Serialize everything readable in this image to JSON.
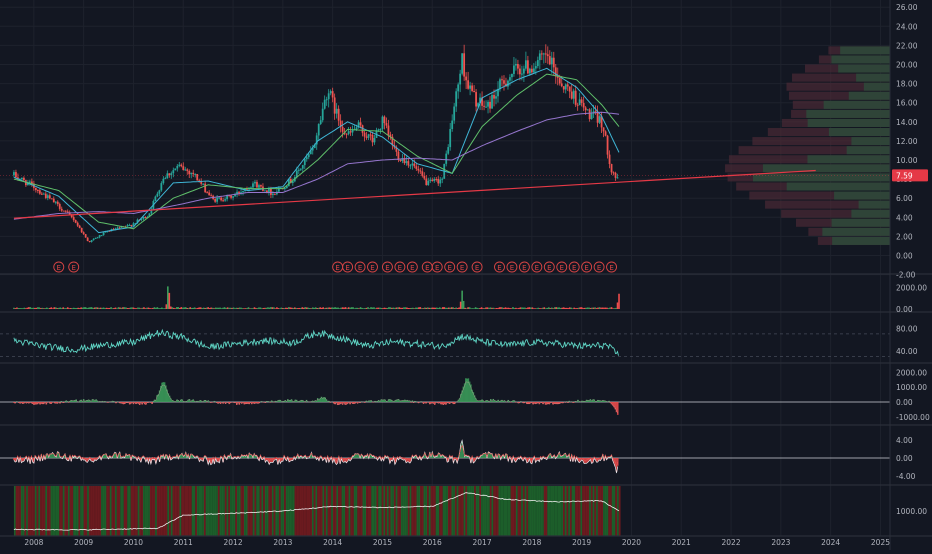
{
  "colors": {
    "background": "#131722",
    "grid": "#1e222d",
    "separator": "#2a2e39",
    "axis_text": "#b2b5be",
    "up": "#26a69a",
    "down": "#ef5350",
    "up_volume": "#3c9d5a",
    "down_volume": "#ef4c4c",
    "ma_fast": "#3fb6d6",
    "ma_mid": "#5fbf6a",
    "ma_slow": "#9575cd",
    "trendline": "#e53946",
    "price_label_bg": "#e53946",
    "earnings_marker": "#d84545",
    "rsi_line": "#5fd4c4",
    "heat_green": "#1c5e2a",
    "heat_red": "#6b1a1f"
  },
  "chart_data": [
    {
      "type": "candlestick",
      "panel": "price",
      "title": "",
      "xlabel": "",
      "ylabel": "",
      "y_axis_ticks": [
        "26.00",
        "24.00",
        "22.00",
        "20.00",
        "18.00",
        "16.00",
        "14.00",
        "12.00",
        "10.00",
        "8.00",
        "6.00",
        "4.00",
        "2.00",
        "0.00",
        "-2.00"
      ],
      "ylim": [
        -2,
        26
      ],
      "last_price_label": "7.59",
      "close_series": {
        "x": [
          2007.6,
          2008.0,
          2008.4,
          2008.8,
          2009.1,
          2009.5,
          2009.9,
          2010.3,
          2010.6,
          2010.9,
          2011.2,
          2011.6,
          2012.0,
          2012.4,
          2012.8,
          2013.2,
          2013.6,
          2013.9,
          2014.1,
          2014.3,
          2014.5,
          2014.8,
          2015.0,
          2015.3,
          2015.6,
          2015.9,
          2016.2,
          2016.6,
          2016.7,
          2016.9,
          2017.1,
          2017.4,
          2017.7,
          2018.0,
          2018.3,
          2018.6,
          2018.8,
          2019.1,
          2019.4,
          2019.6,
          2019.75
        ],
        "y": [
          8.4,
          7.2,
          5.6,
          3.8,
          1.4,
          2.6,
          3.1,
          4.2,
          8.2,
          9.3,
          8.6,
          5.8,
          6.2,
          7.6,
          6.5,
          8.0,
          11.0,
          17.5,
          14.5,
          12.5,
          13.5,
          12.0,
          14.0,
          10.5,
          9.5,
          7.5,
          8.0,
          20.5,
          18.0,
          16.0,
          15.5,
          18.0,
          19.5,
          19.8,
          20.8,
          18.0,
          17.0,
          15.0,
          14.0,
          9.0,
          7.59
        ]
      },
      "moving_averages": [
        {
          "x": [
            2007.6,
            2008.5,
            2009.3,
            2010.0,
            2010.8,
            2011.5,
            2012.3,
            2013.0,
            2013.7,
            2014.3,
            2015.0,
            2015.7,
            2016.4,
            2017.0,
            2017.7,
            2018.3,
            2018.9,
            2019.4,
            2019.75
          ],
          "y": [
            8.2,
            6.2,
            2.4,
            3.0,
            7.6,
            7.8,
            6.8,
            7.2,
            12.0,
            14.0,
            12.4,
            9.6,
            8.6,
            16.5,
            18.4,
            19.6,
            17.6,
            14.6,
            10.8
          ]
        },
        {
          "x": [
            2007.6,
            2008.5,
            2009.3,
            2010.0,
            2010.8,
            2011.5,
            2012.3,
            2013.0,
            2013.7,
            2014.3,
            2015.0,
            2015.7,
            2016.4,
            2017.0,
            2017.7,
            2018.3,
            2018.9,
            2019.4,
            2019.75
          ],
          "y": [
            8.0,
            6.8,
            3.5,
            2.8,
            6.0,
            7.4,
            7.0,
            7.0,
            10.0,
            13.2,
            13.0,
            10.4,
            8.6,
            13.5,
            16.8,
            19.0,
            18.4,
            15.8,
            13.5
          ]
        },
        {
          "x": [
            2007.6,
            2008.5,
            2009.3,
            2010.0,
            2010.8,
            2011.5,
            2012.3,
            2013.0,
            2013.7,
            2014.3,
            2015.0,
            2015.7,
            2016.4,
            2017.0,
            2017.7,
            2018.3,
            2018.9,
            2019.4,
            2019.75
          ],
          "y": [
            3.8,
            4.4,
            4.6,
            4.4,
            5.2,
            6.0,
            6.6,
            6.6,
            8.0,
            9.6,
            10.0,
            10.2,
            10.0,
            11.5,
            13.0,
            14.2,
            14.8,
            15.0,
            14.8
          ]
        }
      ],
      "trendline": {
        "x": [
          2007.6,
          2023.7
        ],
        "y": [
          3.9,
          8.9
        ]
      },
      "earnings_markers": {
        "label": "E",
        "x": [
          2008.5,
          2008.8,
          2014.1,
          2014.3,
          2014.55,
          2014.8,
          2015.1,
          2015.35,
          2015.6,
          2015.9,
          2016.1,
          2016.35,
          2016.6,
          2016.9,
          2017.35,
          2017.6,
          2017.85,
          2018.1,
          2018.35,
          2018.6,
          2018.85,
          2019.1,
          2019.35,
          2019.6
        ]
      },
      "volume_profile_note": ""
    },
    {
      "type": "bar",
      "panel": "volume",
      "y_axis_ticks": [
        "2000.00",
        "0.00"
      ],
      "ylim": [
        0,
        3000
      ],
      "x": [
        2010.7,
        2016.6,
        2019.75
      ],
      "values": [
        2200,
        1600,
        1300
      ]
    },
    {
      "type": "line",
      "panel": "rsi",
      "y_axis_ticks": [
        "80.00",
        "40.00"
      ],
      "ylim": [
        20,
        100
      ],
      "reference_lines": [
        70,
        30
      ],
      "x": [
        2007.6,
        2008.2,
        2008.8,
        2009.4,
        2010.0,
        2010.5,
        2011.0,
        2011.5,
        2012.0,
        2012.6,
        2013.2,
        2013.7,
        2014.2,
        2014.7,
        2015.2,
        2015.7,
        2016.2,
        2016.6,
        2017.0,
        2017.5,
        2018.0,
        2018.5,
        2019.0,
        2019.5,
        2019.75
      ],
      "values": [
        58,
        48,
        42,
        50,
        55,
        72,
        64,
        46,
        52,
        58,
        54,
        72,
        62,
        48,
        56,
        52,
        48,
        66,
        56,
        50,
        55,
        53,
        48,
        50,
        32
      ]
    },
    {
      "type": "bar",
      "panel": "oscillator-1",
      "y_axis_ticks": [
        "2000.00",
        "1000.00",
        "0.00",
        "-1000.00"
      ],
      "ylim": [
        -1500,
        2500
      ],
      "x": [
        2010.6,
        2013.8,
        2016.7,
        2019.75
      ],
      "values": [
        1300,
        400,
        1600,
        -900
      ]
    },
    {
      "type": "line",
      "panel": "oscillator-2",
      "y_axis_ticks": [
        "4.00",
        "0.00",
        "-4.00"
      ],
      "ylim": [
        -6,
        6
      ],
      "x": [
        2016.6,
        2019.7
      ],
      "values": [
        4.2,
        -3.8
      ]
    },
    {
      "type": "heatmap",
      "panel": "money-flow",
      "y_axis_ticks": [
        "1000.00"
      ],
      "ylim": [
        0,
        2000
      ],
      "line_x": [
        2007.6,
        2009.0,
        2010.5,
        2011.0,
        2012.0,
        2013.0,
        2014.0,
        2015.0,
        2016.0,
        2016.7,
        2017.5,
        2018.5,
        2019.4,
        2019.75
      ],
      "line_y": [
        200,
        180,
        250,
        820,
        900,
        1000,
        1200,
        1150,
        1200,
        1800,
        1500,
        1400,
        1450,
        1000
      ]
    }
  ],
  "x_axis_ticks": [
    "2008",
    "2009",
    "2010",
    "2011",
    "2012",
    "2013",
    "2014",
    "2015",
    "2016",
    "2017",
    "2018",
    "2019",
    "2020",
    "2021",
    "2022",
    "2023",
    "2024",
    "2025"
  ]
}
